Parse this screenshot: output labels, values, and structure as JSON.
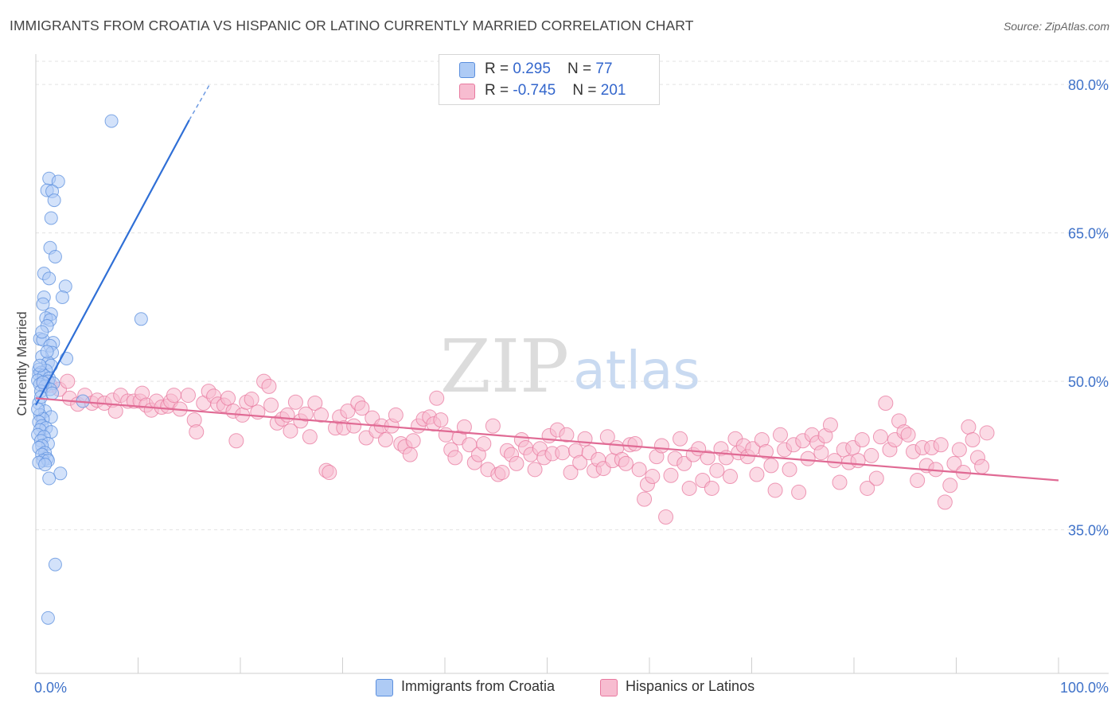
{
  "title": "IMMIGRANTS FROM CROATIA VS HISPANIC OR LATINO CURRENTLY MARRIED CORRELATION CHART",
  "source": "Source: ZipAtlas.com",
  "watermark": {
    "zip": "ZIP",
    "atlas": "atlas"
  },
  "legend": {
    "rows": [
      {
        "r_label": "R = ",
        "r_value": "0.295",
        "n_label": "N = ",
        "n_value": "77",
        "color": "#aecbf5",
        "stroke": "#5b8fde"
      },
      {
        "r_label": "R = ",
        "r_value": "-0.745",
        "n_label": "N = ",
        "n_value": "201",
        "color": "#f7bcd0",
        "stroke": "#e8799f"
      }
    ]
  },
  "chart_data": {
    "type": "scatter",
    "title": "IMMIGRANTS FROM CROATIA VS HISPANIC OR LATINO CURRENTLY MARRIED CORRELATION CHART",
    "xlabel": "",
    "ylabel": "Currently Married",
    "xlim": [
      0,
      100
    ],
    "ylim": [
      20.5,
      82.5
    ],
    "x_tick_labels": [
      "0.0%",
      "100.0%"
    ],
    "y_ticks": [
      35,
      50,
      65,
      80
    ],
    "y_tick_labels": [
      "35.0%",
      "50.0%",
      "65.0%",
      "80.0%"
    ],
    "grid": true,
    "legend_position": "top-center",
    "series": [
      {
        "name": "Immigrants from Croatia",
        "color": "#aecbf5",
        "stroke": "#5b8fde",
        "trend_color": "#2f6fd6",
        "trend": {
          "x0": 0.0,
          "y0": 47.6,
          "x1": 15.0,
          "y1": 76.4,
          "dash_x1": 17.0,
          "dash_y1": 80.0
        },
        "points": [
          [
            7.4,
            76.3
          ],
          [
            1.3,
            70.5
          ],
          [
            2.2,
            70.2
          ],
          [
            1.1,
            69.3
          ],
          [
            1.6,
            69.2
          ],
          [
            1.8,
            68.3
          ],
          [
            1.5,
            66.5
          ],
          [
            1.4,
            63.5
          ],
          [
            1.9,
            62.6
          ],
          [
            0.8,
            60.9
          ],
          [
            1.3,
            60.4
          ],
          [
            2.9,
            59.6
          ],
          [
            0.8,
            58.5
          ],
          [
            2.6,
            58.5
          ],
          [
            0.7,
            57.8
          ],
          [
            1.5,
            56.8
          ],
          [
            1.0,
            56.4
          ],
          [
            10.3,
            56.3
          ],
          [
            1.4,
            56.2
          ],
          [
            1.1,
            55.6
          ],
          [
            0.4,
            54.3
          ],
          [
            0.7,
            54.2
          ],
          [
            1.7,
            53.9
          ],
          [
            1.4,
            53.6
          ],
          [
            1.6,
            52.9
          ],
          [
            0.6,
            52.5
          ],
          [
            3.0,
            52.3
          ],
          [
            1.2,
            51.9
          ],
          [
            1.5,
            51.6
          ],
          [
            0.3,
            51.2
          ],
          [
            1.0,
            51.1
          ],
          [
            0.5,
            50.9
          ],
          [
            0.3,
            50.7
          ],
          [
            0.8,
            50.6
          ],
          [
            1.3,
            50.3
          ],
          [
            0.2,
            50.1
          ],
          [
            1.2,
            50.0
          ],
          [
            1.7,
            49.8
          ],
          [
            0.4,
            49.7
          ],
          [
            0.9,
            49.5
          ],
          [
            1.4,
            49.2
          ],
          [
            0.5,
            49.0
          ],
          [
            4.6,
            48.0
          ],
          [
            0.3,
            47.8
          ],
          [
            0.9,
            47.0
          ],
          [
            0.4,
            46.6
          ],
          [
            1.5,
            46.4
          ],
          [
            0.7,
            46.2
          ],
          [
            0.3,
            45.9
          ],
          [
            0.6,
            45.5
          ],
          [
            1.0,
            45.3
          ],
          [
            0.4,
            45.1
          ],
          [
            1.5,
            44.9
          ],
          [
            0.2,
            44.6
          ],
          [
            0.8,
            44.4
          ],
          [
            0.5,
            44.0
          ],
          [
            1.2,
            43.7
          ],
          [
            0.6,
            43.5
          ],
          [
            0.3,
            43.3
          ],
          [
            0.9,
            42.8
          ],
          [
            0.6,
            42.6
          ],
          [
            1.1,
            42.2
          ],
          [
            0.7,
            42.0
          ],
          [
            1.2,
            42.0
          ],
          [
            0.3,
            41.8
          ],
          [
            0.9,
            41.6
          ],
          [
            2.4,
            40.7
          ],
          [
            1.3,
            40.2
          ],
          [
            1.9,
            31.5
          ],
          [
            1.2,
            26.1
          ],
          [
            0.5,
            48.4
          ],
          [
            0.2,
            47.2
          ],
          [
            1.6,
            48.8
          ],
          [
            0.7,
            49.9
          ],
          [
            0.4,
            51.6
          ],
          [
            1.1,
            53.0
          ],
          [
            0.6,
            55.0
          ]
        ]
      },
      {
        "name": "Hispanics or Latinos",
        "color": "#f7bcd0",
        "stroke": "#e8799f",
        "trend_color": "#e06a94",
        "trend": {
          "x0": 0.0,
          "y0": 48.3,
          "x1": 100.0,
          "y1": 40.0
        },
        "points": [
          [
            0.8,
            49.9
          ],
          [
            1.4,
            49.6
          ],
          [
            2.3,
            49.2
          ],
          [
            3.1,
            50.0
          ],
          [
            3.3,
            48.3
          ],
          [
            4.1,
            47.7
          ],
          [
            4.8,
            48.6
          ],
          [
            5.5,
            47.8
          ],
          [
            6.0,
            48.1
          ],
          [
            6.7,
            47.8
          ],
          [
            7.5,
            48.1
          ],
          [
            7.8,
            47.0
          ],
          [
            8.3,
            48.6
          ],
          [
            9.0,
            48.0
          ],
          [
            9.6,
            48.0
          ],
          [
            10.2,
            48.0
          ],
          [
            10.4,
            48.8
          ],
          [
            10.8,
            47.6
          ],
          [
            11.3,
            47.1
          ],
          [
            11.8,
            48.0
          ],
          [
            12.3,
            47.4
          ],
          [
            12.9,
            47.5
          ],
          [
            13.2,
            48.0
          ],
          [
            13.5,
            48.6
          ],
          [
            14.1,
            47.2
          ],
          [
            14.9,
            48.6
          ],
          [
            15.5,
            46.1
          ],
          [
            15.7,
            44.9
          ],
          [
            16.4,
            47.8
          ],
          [
            16.9,
            49.0
          ],
          [
            17.4,
            48.5
          ],
          [
            17.8,
            47.7
          ],
          [
            18.4,
            47.6
          ],
          [
            18.8,
            48.3
          ],
          [
            19.3,
            47.0
          ],
          [
            19.6,
            44.0
          ],
          [
            20.2,
            46.6
          ],
          [
            20.6,
            47.9
          ],
          [
            21.1,
            48.2
          ],
          [
            21.7,
            46.9
          ],
          [
            22.3,
            50.0
          ],
          [
            22.8,
            49.5
          ],
          [
            23.0,
            47.6
          ],
          [
            23.6,
            45.8
          ],
          [
            24.1,
            46.2
          ],
          [
            24.6,
            46.6
          ],
          [
            24.9,
            45.0
          ],
          [
            25.4,
            47.9
          ],
          [
            25.9,
            46.0
          ],
          [
            26.4,
            46.7
          ],
          [
            26.8,
            44.4
          ],
          [
            27.3,
            47.8
          ],
          [
            27.9,
            46.6
          ],
          [
            28.4,
            41.0
          ],
          [
            28.7,
            40.8
          ],
          [
            29.3,
            45.3
          ],
          [
            29.7,
            46.4
          ],
          [
            30.1,
            45.3
          ],
          [
            30.5,
            47.0
          ],
          [
            31.1,
            45.5
          ],
          [
            31.5,
            47.8
          ],
          [
            31.9,
            47.3
          ],
          [
            32.3,
            44.3
          ],
          [
            32.9,
            46.3
          ],
          [
            33.3,
            45.0
          ],
          [
            33.8,
            45.5
          ],
          [
            34.2,
            44.1
          ],
          [
            34.8,
            45.5
          ],
          [
            35.2,
            46.6
          ],
          [
            35.7,
            43.7
          ],
          [
            36.1,
            43.4
          ],
          [
            36.6,
            42.6
          ],
          [
            36.9,
            44.0
          ],
          [
            37.4,
            45.5
          ],
          [
            37.9,
            46.2
          ],
          [
            38.5,
            46.4
          ],
          [
            38.9,
            45.7
          ],
          [
            39.2,
            48.3
          ],
          [
            39.6,
            46.1
          ],
          [
            40.1,
            44.6
          ],
          [
            40.6,
            43.1
          ],
          [
            41.0,
            42.3
          ],
          [
            41.4,
            44.3
          ],
          [
            41.9,
            45.4
          ],
          [
            42.4,
            43.6
          ],
          [
            42.9,
            41.8
          ],
          [
            43.3,
            42.6
          ],
          [
            43.8,
            43.7
          ],
          [
            44.2,
            41.1
          ],
          [
            44.7,
            45.5
          ],
          [
            45.2,
            40.6
          ],
          [
            45.6,
            40.8
          ],
          [
            46.1,
            43.0
          ],
          [
            46.5,
            42.6
          ],
          [
            47.0,
            41.7
          ],
          [
            47.5,
            44.1
          ],
          [
            47.9,
            43.3
          ],
          [
            48.4,
            42.6
          ],
          [
            48.8,
            41.1
          ],
          [
            49.3,
            43.2
          ],
          [
            49.7,
            42.3
          ],
          [
            50.2,
            44.5
          ],
          [
            50.5,
            42.7
          ],
          [
            51.0,
            45.1
          ],
          [
            51.5,
            42.8
          ],
          [
            51.9,
            44.6
          ],
          [
            52.3,
            40.8
          ],
          [
            52.8,
            43.0
          ],
          [
            53.2,
            41.8
          ],
          [
            53.7,
            44.2
          ],
          [
            54.1,
            42.8
          ],
          [
            54.6,
            41.0
          ],
          [
            55.0,
            42.1
          ],
          [
            55.5,
            41.2
          ],
          [
            55.9,
            44.4
          ],
          [
            56.4,
            42.0
          ],
          [
            56.8,
            43.3
          ],
          [
            57.3,
            42.1
          ],
          [
            57.7,
            41.7
          ],
          [
            58.1,
            43.6
          ],
          [
            58.6,
            43.7
          ],
          [
            59.0,
            41.1
          ],
          [
            59.5,
            38.1
          ],
          [
            59.8,
            39.6
          ],
          [
            60.3,
            40.4
          ],
          [
            60.7,
            42.4
          ],
          [
            61.2,
            43.5
          ],
          [
            61.6,
            36.3
          ],
          [
            62.1,
            40.5
          ],
          [
            62.5,
            42.2
          ],
          [
            63.0,
            44.2
          ],
          [
            63.4,
            41.7
          ],
          [
            63.9,
            39.2
          ],
          [
            64.3,
            42.6
          ],
          [
            64.8,
            43.2
          ],
          [
            65.2,
            40.0
          ],
          [
            65.7,
            42.3
          ],
          [
            66.1,
            39.2
          ],
          [
            66.6,
            41.0
          ],
          [
            67.0,
            43.2
          ],
          [
            67.5,
            42.3
          ],
          [
            67.9,
            40.4
          ],
          [
            68.4,
            44.2
          ],
          [
            68.7,
            42.8
          ],
          [
            69.2,
            43.5
          ],
          [
            69.6,
            42.4
          ],
          [
            70.1,
            43.2
          ],
          [
            70.5,
            40.6
          ],
          [
            71.0,
            44.1
          ],
          [
            71.4,
            42.9
          ],
          [
            71.9,
            41.5
          ],
          [
            72.3,
            39.0
          ],
          [
            72.8,
            44.6
          ],
          [
            73.2,
            43.1
          ],
          [
            73.7,
            41.1
          ],
          [
            74.1,
            43.6
          ],
          [
            74.6,
            38.8
          ],
          [
            75.0,
            44.0
          ],
          [
            75.5,
            42.2
          ],
          [
            75.9,
            44.6
          ],
          [
            76.4,
            43.8
          ],
          [
            76.8,
            42.8
          ],
          [
            77.2,
            44.5
          ],
          [
            77.7,
            45.6
          ],
          [
            78.1,
            42.0
          ],
          [
            78.6,
            39.8
          ],
          [
            79.0,
            43.1
          ],
          [
            79.5,
            41.8
          ],
          [
            79.9,
            43.3
          ],
          [
            80.4,
            42.0
          ],
          [
            80.8,
            44.1
          ],
          [
            81.3,
            39.2
          ],
          [
            81.7,
            42.5
          ],
          [
            82.2,
            40.2
          ],
          [
            82.6,
            44.4
          ],
          [
            83.1,
            47.8
          ],
          [
            83.5,
            43.1
          ],
          [
            84.0,
            44.1
          ],
          [
            84.4,
            46.0
          ],
          [
            84.9,
            44.9
          ],
          [
            85.3,
            44.6
          ],
          [
            85.8,
            42.9
          ],
          [
            86.2,
            40.0
          ],
          [
            86.7,
            43.3
          ],
          [
            87.1,
            41.5
          ],
          [
            87.6,
            43.3
          ],
          [
            88.0,
            41.1
          ],
          [
            88.5,
            43.6
          ],
          [
            88.9,
            37.8
          ],
          [
            89.4,
            39.5
          ],
          [
            89.8,
            41.7
          ],
          [
            90.3,
            43.1
          ],
          [
            90.7,
            40.8
          ],
          [
            91.2,
            45.4
          ],
          [
            91.6,
            44.1
          ],
          [
            92.1,
            42.3
          ],
          [
            92.5,
            41.4
          ],
          [
            93.0,
            44.8
          ]
        ]
      }
    ]
  },
  "bottom_legend": [
    {
      "label": "Immigrants from Croatia",
      "color": "#aecbf5",
      "stroke": "#5b8fde"
    },
    {
      "label": "Hispanics or Latinos",
      "color": "#f7bcd0",
      "stroke": "#e8799f"
    }
  ]
}
